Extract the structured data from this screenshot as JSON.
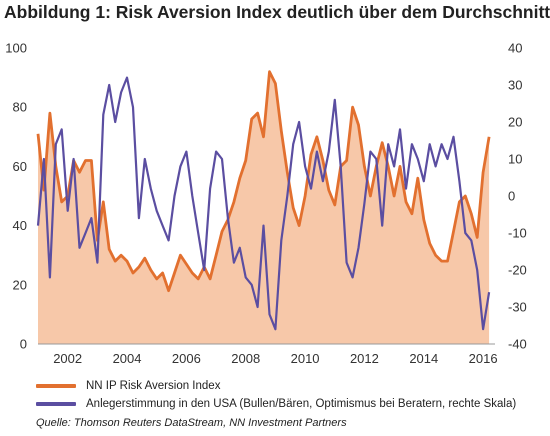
{
  "title": "Abbildung 1: Risk Aversion Index deutlich über dem Durchschnitt",
  "legend": {
    "series1": "NN IP Risk Aversion Index",
    "series2": "Anlegerstimmung in den USA (Bullen/Bären, Optimismus bei Beratern, rechte Skala)"
  },
  "source": "Quelle: Thomson Reuters DataStream, NN Investment Partners",
  "colors": {
    "risk": "#e2702f",
    "riskFill": "#f7c8a9",
    "sentiment": "#5b4ea1"
  },
  "chart_data": {
    "type": "area",
    "xlim": [
      2001.0,
      2016.4
    ],
    "x_ticks": [
      2002,
      2004,
      2006,
      2008,
      2010,
      2012,
      2014,
      2016
    ],
    "y_left": {
      "lim": [
        0,
        100
      ],
      "ticks": [
        0,
        20,
        40,
        60,
        80,
        100
      ]
    },
    "y_right": {
      "lim": [
        -40,
        40
      ],
      "ticks": [
        40,
        30,
        20,
        10,
        0,
        -10,
        -20,
        -30,
        -40
      ]
    },
    "series": [
      {
        "name": "NN IP Risk Aversion Index",
        "axis": "left",
        "chart": "area",
        "x": [
          2001.0,
          2001.2,
          2001.4,
          2001.6,
          2001.8,
          2002.0,
          2002.2,
          2002.4,
          2002.6,
          2002.8,
          2003.0,
          2003.2,
          2003.4,
          2003.6,
          2003.8,
          2004.0,
          2004.2,
          2004.4,
          2004.6,
          2004.8,
          2005.0,
          2005.2,
          2005.4,
          2005.6,
          2005.8,
          2006.0,
          2006.2,
          2006.4,
          2006.6,
          2006.8,
          2007.0,
          2007.2,
          2007.4,
          2007.6,
          2007.8,
          2008.0,
          2008.2,
          2008.4,
          2008.6,
          2008.8,
          2009.0,
          2009.2,
          2009.4,
          2009.6,
          2009.8,
          2010.0,
          2010.2,
          2010.4,
          2010.6,
          2010.8,
          2011.0,
          2011.2,
          2011.4,
          2011.6,
          2011.8,
          2012.0,
          2012.2,
          2012.4,
          2012.6,
          2012.8,
          2013.0,
          2013.2,
          2013.4,
          2013.6,
          2013.8,
          2014.0,
          2014.2,
          2014.4,
          2014.6,
          2014.8,
          2015.0,
          2015.2,
          2015.4,
          2015.6,
          2015.8,
          2016.0,
          2016.2
        ],
        "values": [
          71,
          52,
          78,
          60,
          48,
          50,
          62,
          58,
          62,
          62,
          35,
          48,
          32,
          28,
          30,
          28,
          24,
          26,
          29,
          25,
          22,
          24,
          18,
          24,
          30,
          27,
          24,
          22,
          26,
          22,
          30,
          38,
          42,
          48,
          56,
          62,
          76,
          78,
          70,
          92,
          88,
          72,
          58,
          46,
          40,
          50,
          64,
          70,
          62,
          52,
          47,
          60,
          62,
          80,
          74,
          60,
          50,
          60,
          68,
          60,
          50,
          60,
          48,
          44,
          56,
          42,
          34,
          30,
          28,
          28,
          38,
          48,
          50,
          44,
          36,
          58,
          70
        ]
      },
      {
        "name": "Anlegerstimmung in den USA (Bullen/Bären, Optimismus bei Beratern, rechte Skala)",
        "axis": "right",
        "chart": "line",
        "x": [
          2001.0,
          2001.2,
          2001.4,
          2001.6,
          2001.8,
          2002.0,
          2002.2,
          2002.4,
          2002.6,
          2002.8,
          2003.0,
          2003.2,
          2003.4,
          2003.6,
          2003.8,
          2004.0,
          2004.2,
          2004.4,
          2004.6,
          2004.8,
          2005.0,
          2005.2,
          2005.4,
          2005.6,
          2005.8,
          2006.0,
          2006.2,
          2006.4,
          2006.6,
          2006.8,
          2007.0,
          2007.2,
          2007.4,
          2007.6,
          2007.8,
          2008.0,
          2008.2,
          2008.4,
          2008.6,
          2008.8,
          2009.0,
          2009.2,
          2009.4,
          2009.6,
          2009.8,
          2010.0,
          2010.2,
          2010.4,
          2010.6,
          2010.8,
          2011.0,
          2011.2,
          2011.4,
          2011.6,
          2011.8,
          2012.0,
          2012.2,
          2012.4,
          2012.6,
          2012.8,
          2013.0,
          2013.2,
          2013.4,
          2013.6,
          2013.8,
          2014.0,
          2014.2,
          2014.4,
          2014.6,
          2014.8,
          2015.0,
          2015.2,
          2015.4,
          2015.6,
          2015.8,
          2016.0,
          2016.2
        ],
        "values": [
          -8,
          10,
          -22,
          14,
          18,
          -4,
          10,
          -14,
          -10,
          -6,
          -18,
          22,
          30,
          20,
          28,
          32,
          24,
          -6,
          10,
          2,
          -4,
          -8,
          -12,
          0,
          8,
          12,
          0,
          -10,
          -20,
          2,
          12,
          10,
          -6,
          -18,
          -14,
          -22,
          -24,
          -30,
          -8,
          -32,
          -36,
          -12,
          0,
          14,
          20,
          8,
          2,
          12,
          4,
          12,
          26,
          8,
          -18,
          -22,
          -14,
          -2,
          12,
          10,
          -8,
          14,
          8,
          18,
          2,
          14,
          10,
          4,
          14,
          8,
          14,
          10,
          16,
          4,
          -10,
          -12,
          -20,
          -36,
          -26
        ]
      }
    ]
  }
}
